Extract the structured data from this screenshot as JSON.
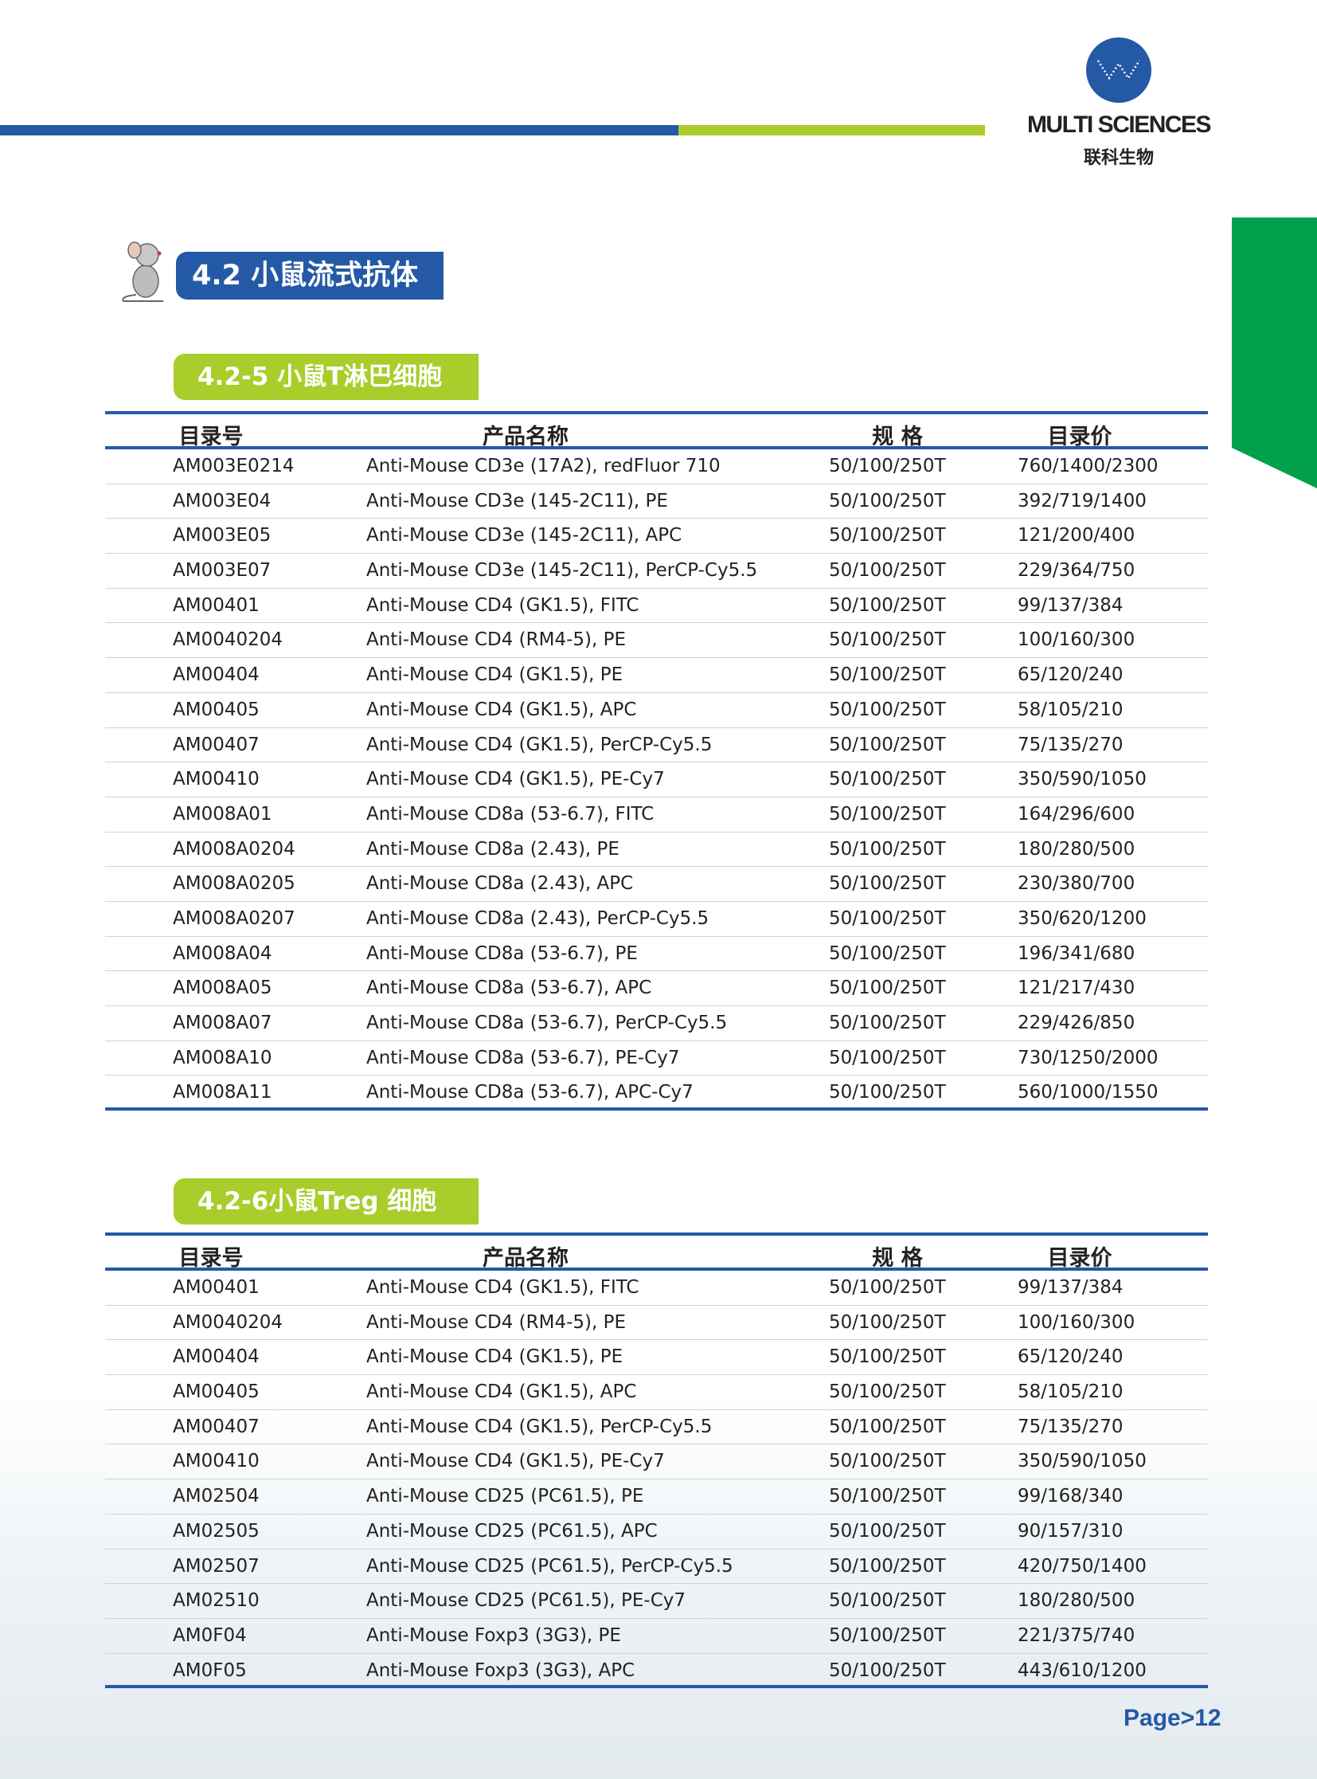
{
  "brand": {
    "name": "MULTI SCIENCES",
    "name_cn": "联科生物",
    "colors": {
      "blue": "#2459a6",
      "lime": "#a9cd2a",
      "green": "#00a04c"
    }
  },
  "section_title": "4.2 小鼠流式抗体",
  "columns": [
    "目录号",
    "产品名称",
    "规 格",
    "目录价"
  ],
  "tables": [
    {
      "title": "4.2-5 小鼠T淋巴细胞",
      "rows": [
        [
          "AM003E0214",
          "Anti-Mouse CD3e (17A2), redFluor 710",
          "50/100/250T",
          "760/1400/2300"
        ],
        [
          "AM003E04",
          "Anti-Mouse CD3e (145-2C11), PE",
          "50/100/250T",
          "392/719/1400"
        ],
        [
          "AM003E05",
          "Anti-Mouse CD3e (145-2C11), APC",
          "50/100/250T",
          "121/200/400"
        ],
        [
          "AM003E07",
          "Anti-Mouse CD3e (145-2C11), PerCP-Cy5.5",
          "50/100/250T",
          "229/364/750"
        ],
        [
          "AM00401",
          "Anti-Mouse CD4 (GK1.5), FITC",
          "50/100/250T",
          "99/137/384"
        ],
        [
          "AM0040204",
          "Anti-Mouse CD4 (RM4-5), PE",
          "50/100/250T",
          "100/160/300"
        ],
        [
          "AM00404",
          "Anti-Mouse CD4 (GK1.5), PE",
          "50/100/250T",
          "65/120/240"
        ],
        [
          "AM00405",
          "Anti-Mouse CD4 (GK1.5), APC",
          "50/100/250T",
          "58/105/210"
        ],
        [
          "AM00407",
          "Anti-Mouse CD4 (GK1.5), PerCP-Cy5.5",
          "50/100/250T",
          "75/135/270"
        ],
        [
          "AM00410",
          "Anti-Mouse CD4 (GK1.5), PE-Cy7",
          "50/100/250T",
          "350/590/1050"
        ],
        [
          "AM008A01",
          "Anti-Mouse CD8a (53-6.7), FITC",
          "50/100/250T",
          "164/296/600"
        ],
        [
          "AM008A0204",
          "Anti-Mouse CD8a (2.43), PE",
          "50/100/250T",
          "180/280/500"
        ],
        [
          "AM008A0205",
          "Anti-Mouse CD8a (2.43), APC",
          "50/100/250T",
          "230/380/700"
        ],
        [
          "AM008A0207",
          "Anti-Mouse CD8a (2.43), PerCP-Cy5.5",
          "50/100/250T",
          "350/620/1200"
        ],
        [
          "AM008A04",
          "Anti-Mouse CD8a (53-6.7), PE",
          "50/100/250T",
          "196/341/680"
        ],
        [
          "AM008A05",
          "Anti-Mouse CD8a (53-6.7), APC",
          "50/100/250T",
          "121/217/430"
        ],
        [
          "AM008A07",
          "Anti-Mouse CD8a (53-6.7), PerCP-Cy5.5",
          "50/100/250T",
          "229/426/850"
        ],
        [
          "AM008A10",
          "Anti-Mouse CD8a (53-6.7), PE-Cy7",
          "50/100/250T",
          "730/1250/2000"
        ],
        [
          "AM008A11",
          "Anti-Mouse CD8a (53-6.7), APC-Cy7",
          "50/100/250T",
          "560/1000/1550"
        ]
      ]
    },
    {
      "title": "4.2-6小鼠Treg 细胞",
      "rows": [
        [
          "AM00401",
          "Anti-Mouse CD4 (GK1.5), FITC",
          "50/100/250T",
          "99/137/384"
        ],
        [
          "AM0040204",
          "Anti-Mouse CD4 (RM4-5), PE",
          "50/100/250T",
          "100/160/300"
        ],
        [
          "AM00404",
          "Anti-Mouse CD4 (GK1.5), PE",
          "50/100/250T",
          "65/120/240"
        ],
        [
          "AM00405",
          "Anti-Mouse CD4 (GK1.5), APC",
          "50/100/250T",
          "58/105/210"
        ],
        [
          "AM00407",
          "Anti-Mouse CD4 (GK1.5), PerCP-Cy5.5",
          "50/100/250T",
          "75/135/270"
        ],
        [
          "AM00410",
          "Anti-Mouse CD4 (GK1.5), PE-Cy7",
          "50/100/250T",
          "350/590/1050"
        ],
        [
          "AM02504",
          "Anti-Mouse CD25 (PC61.5), PE",
          "50/100/250T",
          "99/168/340"
        ],
        [
          "AM02505",
          "Anti-Mouse CD25 (PC61.5), APC",
          "50/100/250T",
          "90/157/310"
        ],
        [
          "AM02507",
          "Anti-Mouse CD25 (PC61.5), PerCP-Cy5.5",
          "50/100/250T",
          "420/750/1400"
        ],
        [
          "AM02510",
          "Anti-Mouse CD25 (PC61.5), PE-Cy7",
          "50/100/250T",
          "180/280/500"
        ],
        [
          "AM0F04",
          "Anti-Mouse Foxp3 (3G3), PE",
          "50/100/250T",
          "221/375/740"
        ],
        [
          "AM0F05",
          "Anti-Mouse Foxp3 (3G3), APC",
          "50/100/250T",
          "443/610/1200"
        ]
      ]
    }
  ],
  "page_label": "Page>12"
}
